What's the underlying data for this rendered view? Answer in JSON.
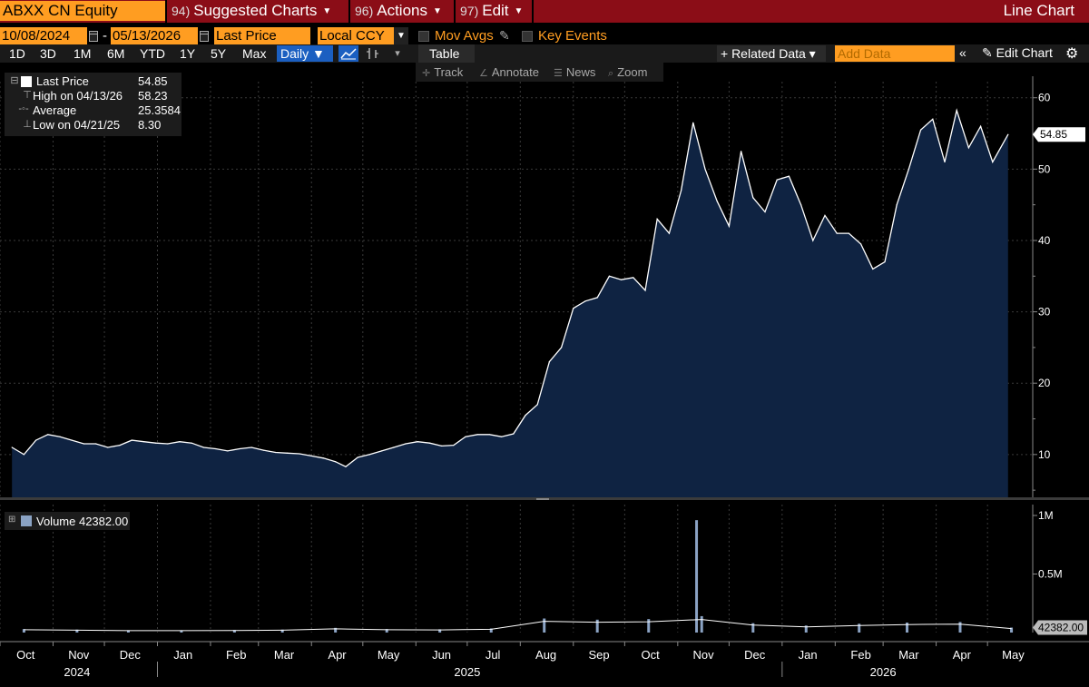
{
  "header": {
    "security": "ABXX CN Equity",
    "menus": [
      {
        "num": "94)",
        "label": "Suggested Charts"
      },
      {
        "num": "96)",
        "label": "Actions"
      },
      {
        "num": "97)",
        "label": "Edit"
      }
    ],
    "chart_type": "Line Chart"
  },
  "controls": {
    "start_date": "10/08/2024",
    "date_sep": "-",
    "end_date": "05/13/2026",
    "field": "Last Price",
    "currency": "Local CCY",
    "mov_avgs": "Mov Avgs",
    "key_events": "Key Events"
  },
  "toolbar": {
    "ranges": [
      "1D",
      "3D",
      "1M",
      "6M",
      "YTD",
      "1Y",
      "5Y",
      "Max"
    ],
    "frequency": "Daily ▼",
    "table": "Table",
    "related_data": "+ Related Data ▾",
    "add_data_placeholder": "Add Data",
    "collapse": "«",
    "edit_chart": "✎ Edit Chart",
    "tools": [
      "Track",
      "Annotate",
      "News",
      "Zoom"
    ]
  },
  "legend": {
    "last_price_label": "Last Price",
    "last_price_value": "54.85",
    "high_label": "High on 04/13/26",
    "high_value": "58.23",
    "average_label": "Average",
    "average_value": "25.3584",
    "low_label": "Low on 04/21/25",
    "low_value": "8.30",
    "volume_label": "Volume 42382.00"
  },
  "colors": {
    "area_fill": "#0f2342",
    "line": "#ffffff",
    "volume_bar": "#8ba3c4",
    "accent_orange": "#ff9d21",
    "title_bar": "#8b0d17"
  },
  "chart_data": [
    {
      "type": "area",
      "series": [
        {
          "name": "Last Price"
        }
      ],
      "x": [
        "2024-10-08",
        "2024-10-15",
        "2024-10-22",
        "2024-10-29",
        "2024-11-05",
        "2024-11-12",
        "2024-11-19",
        "2024-11-26",
        "2024-12-03",
        "2024-12-10",
        "2024-12-17",
        "2024-12-24",
        "2024-12-31",
        "2025-01-07",
        "2025-01-14",
        "2025-01-21",
        "2025-01-28",
        "2025-02-04",
        "2025-02-11",
        "2025-02-18",
        "2025-02-25",
        "2025-03-04",
        "2025-03-11",
        "2025-03-18",
        "2025-03-25",
        "2025-04-01",
        "2025-04-08",
        "2025-04-15",
        "2025-04-21",
        "2025-04-28",
        "2025-05-05",
        "2025-05-12",
        "2025-05-19",
        "2025-05-26",
        "2025-06-02",
        "2025-06-09",
        "2025-06-16",
        "2025-06-23",
        "2025-06-30",
        "2025-07-07",
        "2025-07-14",
        "2025-07-21",
        "2025-07-28",
        "2025-08-04",
        "2025-08-11",
        "2025-08-18",
        "2025-08-25",
        "2025-09-01",
        "2025-09-08",
        "2025-09-15",
        "2025-09-22",
        "2025-09-29",
        "2025-10-06",
        "2025-10-13",
        "2025-10-20",
        "2025-10-27",
        "2025-11-03",
        "2025-11-10",
        "2025-11-17",
        "2025-11-24",
        "2025-12-01",
        "2025-12-08",
        "2025-12-15",
        "2025-12-22",
        "2025-12-29",
        "2026-01-05",
        "2026-01-12",
        "2026-01-19",
        "2026-01-26",
        "2026-02-02",
        "2026-02-09",
        "2026-02-16",
        "2026-02-23",
        "2026-03-02",
        "2026-03-09",
        "2026-03-16",
        "2026-03-23",
        "2026-03-30",
        "2026-04-06",
        "2026-04-13",
        "2026-04-20",
        "2026-04-27",
        "2026-05-04",
        "2026-05-13"
      ],
      "values": [
        11.0,
        10.0,
        12.0,
        12.8,
        12.5,
        12.0,
        11.5,
        11.5,
        11.0,
        11.3,
        12.0,
        11.8,
        11.6,
        11.5,
        11.8,
        11.6,
        11.0,
        10.8,
        10.5,
        10.8,
        11.0,
        10.6,
        10.3,
        10.2,
        10.1,
        9.8,
        9.5,
        9.0,
        8.3,
        9.6,
        10.0,
        10.5,
        11.0,
        11.5,
        11.8,
        11.6,
        11.2,
        11.3,
        12.5,
        12.8,
        12.8,
        12.5,
        12.9,
        15.5,
        17.0,
        23.0,
        25.0,
        30.5,
        31.5,
        32.0,
        35.0,
        34.5,
        34.8,
        33.0,
        43.0,
        41.0,
        47.0,
        56.5,
        50.0,
        45.5,
        42.0,
        52.5,
        46.0,
        44.0,
        48.5,
        49.0,
        45.0,
        40.0,
        43.5,
        41.0,
        41.0,
        39.5,
        36.0,
        37.0,
        45.0,
        50.0,
        55.5,
        57.0,
        51.0,
        58.23,
        53.0,
        56.0,
        51.0,
        54.85
      ],
      "ylim": [
        4,
        62
      ],
      "yticks": [
        10,
        20,
        30,
        40,
        50,
        60
      ],
      "last_label": "54.85"
    },
    {
      "type": "bar",
      "series": [
        {
          "name": "Volume"
        }
      ],
      "x": [
        "2024-10",
        "2024-11",
        "2024-12",
        "2025-01",
        "2025-02",
        "2025-03",
        "2025-04",
        "2025-05",
        "2025-06",
        "2025-07",
        "2025-08",
        "2025-09",
        "2025-10",
        "2025-11",
        "2025-11-12",
        "2025-12",
        "2026-01",
        "2026-02",
        "2026-03",
        "2026-04",
        "2026-05"
      ],
      "values": [
        30000,
        25000,
        20000,
        20000,
        22000,
        25000,
        40000,
        30000,
        28000,
        35000,
        120000,
        110000,
        115000,
        140000,
        960000,
        80000,
        60000,
        75000,
        85000,
        90000,
        42382
      ],
      "ylim": [
        0,
        1000000
      ],
      "yticks_labels": [
        "1M",
        "0.5M"
      ],
      "last_label": "42382.00"
    }
  ],
  "x_axis": {
    "months": [
      "Oct",
      "Nov",
      "Dec",
      "Jan",
      "Feb",
      "Mar",
      "Apr",
      "May",
      "Jun",
      "Jul",
      "Aug",
      "Sep",
      "Oct",
      "Nov",
      "Dec",
      "Jan",
      "Feb",
      "Mar",
      "Apr",
      "May"
    ],
    "years": [
      "2024",
      "2025",
      "2026"
    ]
  }
}
